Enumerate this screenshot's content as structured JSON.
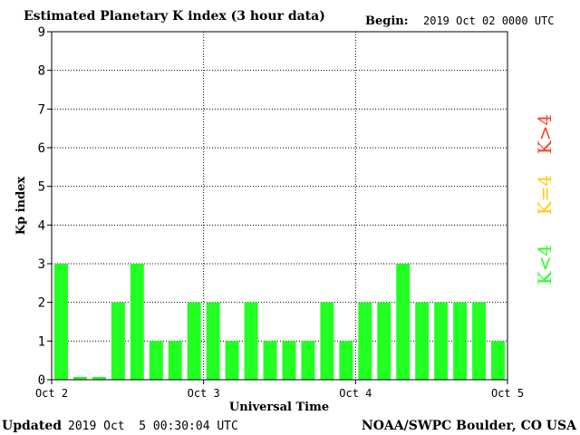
{
  "header": {
    "title": "Estimated Planetary K index (3 hour data)",
    "begin_label": "Begin:",
    "begin_value": "2019 Oct 02 0000 UTC"
  },
  "footer": {
    "updated_label": "Updated",
    "updated_value": "2019 Oct  5 00:30:04 UTC",
    "source": "NOAA/SWPC Boulder, CO USA"
  },
  "legend": {
    "k_gt_4": "K>4",
    "k_eq_4": "K=4",
    "k_lt_4": "K<4"
  },
  "colors": {
    "k_lt_4": "#22ff22",
    "k_eq_4": "#ffcc00",
    "k_gt_4": "#ff3b1e"
  },
  "chart_data": {
    "type": "bar",
    "title": "Estimated Planetary K index (3 hour data)",
    "xlabel": "Universal Time",
    "ylabel": "Kp index",
    "ylim": [
      0,
      9
    ],
    "yticks": [
      0,
      1,
      2,
      3,
      4,
      5,
      6,
      7,
      8,
      9
    ],
    "xticks": [
      "Oct 2",
      "Oct 3",
      "Oct 4",
      "Oct 5"
    ],
    "values": [
      3,
      0.07,
      0.07,
      2,
      3,
      1,
      1,
      2,
      2,
      1,
      2,
      1,
      1,
      1,
      2,
      1,
      2,
      2,
      3,
      2,
      2,
      2,
      2,
      1
    ],
    "grid": true
  }
}
